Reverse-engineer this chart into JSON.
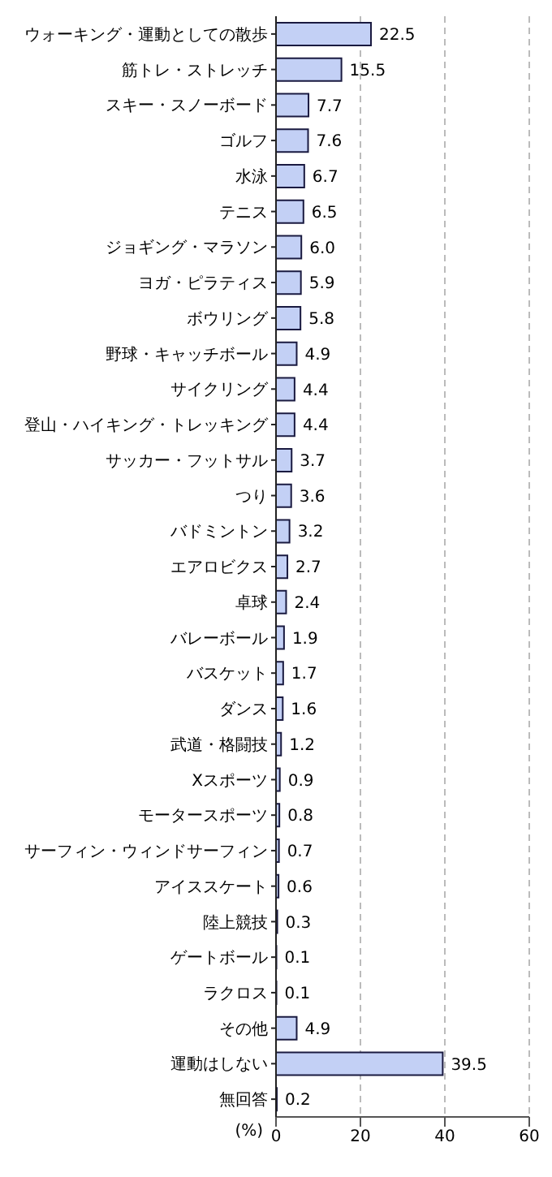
{
  "chart_data": {
    "type": "bar",
    "orientation": "horizontal",
    "xlabel": "(%)",
    "categories": [
      "ウォーキング・運動としての散歩",
      "筋トレ・ストレッチ",
      "スキー・スノーボード",
      "ゴルフ",
      "水泳",
      "テニス",
      "ジョギング・マラソン",
      "ヨガ・ピラティス",
      "ボウリング",
      "野球・キャッチボール",
      "サイクリング",
      "登山・ハイキング・トレッキング",
      "サッカー・フットサル",
      "つり",
      "バドミントン",
      "エアロビクス",
      "卓球",
      "バレーボール",
      "バスケット",
      "ダンス",
      "武道・格闘技",
      "Xスポーツ",
      "モータースポーツ",
      "サーフィン・ウィンドサーフィン",
      "アイススケート",
      "陸上競技",
      "ゲートボール",
      "ラクロス",
      "その他",
      "運動はしない",
      "無回答"
    ],
    "values": [
      22.5,
      15.5,
      7.7,
      7.6,
      6.7,
      6.5,
      6.0,
      5.9,
      5.8,
      4.9,
      4.4,
      4.4,
      3.7,
      3.6,
      3.2,
      2.7,
      2.4,
      1.9,
      1.7,
      1.6,
      1.2,
      0.9,
      0.8,
      0.7,
      0.6,
      0.3,
      0.1,
      0.1,
      4.9,
      39.5,
      0.2
    ],
    "value_labels": [
      "22.5",
      "15.5",
      "7.7",
      "7.6",
      "6.7",
      "6.5",
      "6.0",
      "5.9",
      "5.8",
      "4.9",
      "4.4",
      "4.4",
      "3.7",
      "3.6",
      "3.2",
      "2.7",
      "2.4",
      "1.9",
      "1.7",
      "1.6",
      "1.2",
      "0.9",
      "0.8",
      "0.7",
      "0.6",
      "0.3",
      "0.1",
      "0.1",
      "4.9",
      "39.5",
      "0.2"
    ],
    "color": "#c3d0f5",
    "xlim": [
      0,
      60
    ],
    "xticks": [
      0,
      20,
      40,
      60
    ],
    "grid": "x",
    "legend": false
  }
}
